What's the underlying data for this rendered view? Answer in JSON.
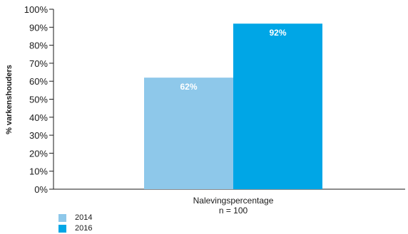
{
  "chart_data": {
    "type": "bar",
    "categories": [
      "Nalevingspercentage"
    ],
    "category_sublabel": "n = 100",
    "series": [
      {
        "name": "2014",
        "values": [
          62
        ],
        "color": "#8ec8ea",
        "label": "62%"
      },
      {
        "name": "2016",
        "values": [
          92
        ],
        "color": "#00a6e6",
        "label": "92%"
      }
    ],
    "ylabel": "% varkenshouders",
    "ylim": [
      0,
      100
    ],
    "yticks": [
      "0%",
      "10%",
      "20%",
      "30%",
      "40%",
      "50%",
      "60%",
      "70%",
      "80%",
      "90%",
      "100%"
    ],
    "grid": false,
    "legend_position": "bottom-left"
  }
}
